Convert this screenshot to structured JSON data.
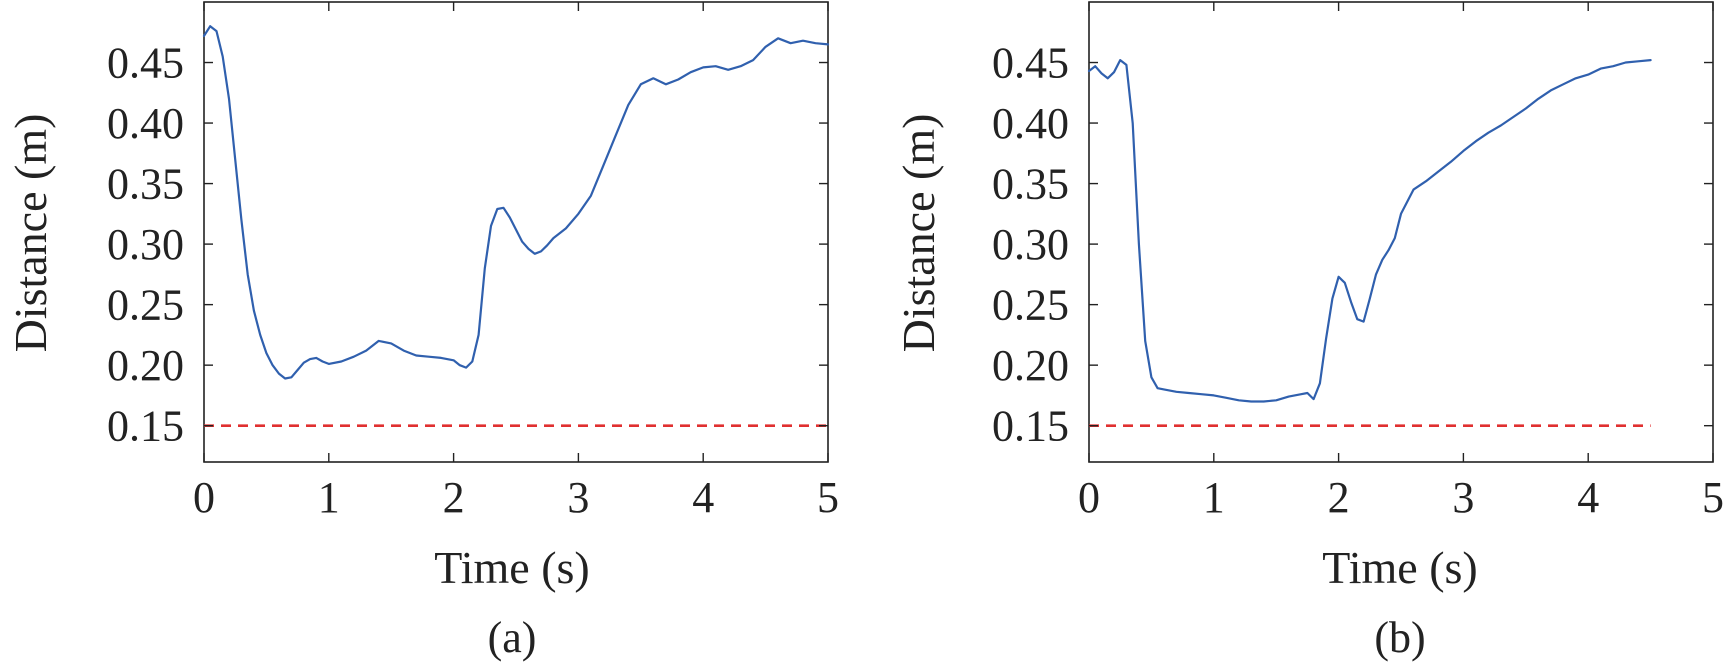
{
  "chart_data": [
    {
      "type": "line",
      "caption": "(a)",
      "xlabel": "Time (s)",
      "ylabel": "Distance (m)",
      "xlim": [
        0,
        5
      ],
      "ylim": [
        0.12,
        0.5
      ],
      "xticks": [
        "0",
        "1",
        "2",
        "3",
        "4",
        "5"
      ],
      "yticks": [
        "0.15",
        "0.20",
        "0.25",
        "0.30",
        "0.35",
        "0.40",
        "0.45"
      ],
      "grid": false,
      "series": [
        {
          "color": "#3060ae",
          "x": [
            0,
            0.05,
            0.1,
            0.15,
            0.2,
            0.25,
            0.3,
            0.35,
            0.4,
            0.45,
            0.5,
            0.55,
            0.6,
            0.65,
            0.7,
            0.75,
            0.8,
            0.85,
            0.9,
            0.95,
            1.0,
            1.1,
            1.2,
            1.3,
            1.4,
            1.5,
            1.6,
            1.7,
            1.8,
            1.9,
            2.0,
            2.05,
            2.1,
            2.15,
            2.2,
            2.25,
            2.3,
            2.35,
            2.4,
            2.45,
            2.5,
            2.55,
            2.6,
            2.65,
            2.7,
            2.75,
            2.8,
            2.9,
            3.0,
            3.1,
            3.2,
            3.3,
            3.4,
            3.5,
            3.6,
            3.7,
            3.8,
            3.9,
            4.0,
            4.1,
            4.2,
            4.3,
            4.4,
            4.5,
            4.6,
            4.7,
            4.8,
            4.9,
            5.0
          ],
          "y": [
            0.472,
            0.48,
            0.476,
            0.455,
            0.42,
            0.37,
            0.32,
            0.275,
            0.245,
            0.225,
            0.21,
            0.2,
            0.193,
            0.189,
            0.19,
            0.196,
            0.202,
            0.205,
            0.206,
            0.203,
            0.201,
            0.203,
            0.207,
            0.212,
            0.22,
            0.218,
            0.212,
            0.208,
            0.207,
            0.206,
            0.204,
            0.2,
            0.198,
            0.203,
            0.225,
            0.28,
            0.315,
            0.329,
            0.33,
            0.322,
            0.312,
            0.302,
            0.296,
            0.292,
            0.294,
            0.299,
            0.305,
            0.313,
            0.325,
            0.34,
            0.365,
            0.39,
            0.415,
            0.432,
            0.437,
            0.432,
            0.436,
            0.442,
            0.446,
            0.447,
            0.444,
            0.447,
            0.452,
            0.463,
            0.47,
            0.466,
            0.468,
            0.466,
            0.465
          ]
        }
      ],
      "threshold": {
        "value": 0.15,
        "color": "#e03030",
        "style": "dashed"
      }
    },
    {
      "type": "line",
      "caption": "(b)",
      "xlabel": "Time (s)",
      "ylabel": "Distance (m)",
      "xlim": [
        0,
        5
      ],
      "ylim": [
        0.12,
        0.5
      ],
      "xticks": [
        "0",
        "1",
        "2",
        "3",
        "4",
        "5"
      ],
      "yticks": [
        "0.15",
        "0.20",
        "0.25",
        "0.30",
        "0.35",
        "0.40",
        "0.45"
      ],
      "grid": false,
      "series": [
        {
          "color": "#3060ae",
          "x": [
            0,
            0.05,
            0.1,
            0.15,
            0.2,
            0.25,
            0.3,
            0.35,
            0.4,
            0.45,
            0.5,
            0.55,
            0.6,
            0.7,
            0.8,
            0.9,
            1.0,
            1.1,
            1.2,
            1.3,
            1.4,
            1.5,
            1.6,
            1.7,
            1.75,
            1.8,
            1.85,
            1.9,
            1.95,
            2.0,
            2.05,
            2.1,
            2.15,
            2.2,
            2.25,
            2.3,
            2.35,
            2.4,
            2.45,
            2.5,
            2.6,
            2.7,
            2.8,
            2.9,
            3.0,
            3.1,
            3.2,
            3.3,
            3.4,
            3.5,
            3.6,
            3.7,
            3.8,
            3.9,
            4.0,
            4.1,
            4.2,
            4.3,
            4.4,
            4.5
          ],
          "y": [
            0.443,
            0.447,
            0.441,
            0.437,
            0.442,
            0.452,
            0.448,
            0.4,
            0.3,
            0.22,
            0.19,
            0.181,
            0.18,
            0.178,
            0.177,
            0.176,
            0.175,
            0.173,
            0.171,
            0.17,
            0.17,
            0.171,
            0.174,
            0.176,
            0.177,
            0.172,
            0.185,
            0.222,
            0.255,
            0.273,
            0.268,
            0.252,
            0.238,
            0.236,
            0.255,
            0.275,
            0.287,
            0.295,
            0.305,
            0.325,
            0.345,
            0.352,
            0.36,
            0.368,
            0.377,
            0.385,
            0.392,
            0.398,
            0.405,
            0.412,
            0.42,
            0.427,
            0.432,
            0.437,
            0.44,
            0.445,
            0.447,
            0.45,
            0.451,
            0.452
          ]
        }
      ],
      "threshold": {
        "value": 0.15,
        "color": "#e03030",
        "style": "dashed"
      }
    }
  ]
}
